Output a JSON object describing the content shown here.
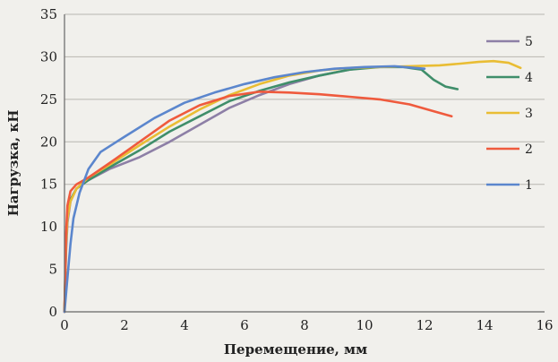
{
  "chart_data": {
    "type": "line",
    "xlabel": "Перемещение, мм",
    "ylabel": "Нагрузка, кН",
    "xlim": [
      0,
      16
    ],
    "ylim": [
      0,
      35
    ],
    "xticks": [
      "0",
      "2",
      "4",
      "6",
      "8",
      "10",
      "12",
      "14",
      "16"
    ],
    "yticks": [
      "0",
      "5",
      "10",
      "15",
      "20",
      "25",
      "30",
      "35"
    ],
    "grid": "horizontal",
    "legend_position": "right",
    "series": [
      {
        "name": "5",
        "color": "#8d7fa6",
        "points": [
          [
            0,
            0
          ],
          [
            0.05,
            7
          ],
          [
            0.1,
            10.5
          ],
          [
            0.2,
            13
          ],
          [
            0.4,
            14.5
          ],
          [
            0.8,
            15.5
          ],
          [
            1.5,
            16.8
          ],
          [
            2.5,
            18.2
          ],
          [
            3.5,
            20
          ],
          [
            4.5,
            22
          ],
          [
            5.5,
            24
          ],
          [
            6.5,
            25.5
          ],
          [
            7.5,
            26.8
          ],
          [
            8.5,
            27.8
          ],
          [
            9.5,
            28.5
          ],
          [
            10.2,
            28.8
          ]
        ]
      },
      {
        "name": "4",
        "color": "#3f8e6a",
        "points": [
          [
            0,
            0
          ],
          [
            0.05,
            8
          ],
          [
            0.1,
            11.5
          ],
          [
            0.2,
            13.2
          ],
          [
            0.4,
            14.5
          ],
          [
            0.8,
            15.5
          ],
          [
            1.5,
            17
          ],
          [
            2.5,
            19
          ],
          [
            3.5,
            21.2
          ],
          [
            4.5,
            23
          ],
          [
            5.5,
            24.8
          ],
          [
            6.5,
            26
          ],
          [
            7.5,
            27
          ],
          [
            8.5,
            27.8
          ],
          [
            9.5,
            28.5
          ],
          [
            10.5,
            28.8
          ],
          [
            11.3,
            28.8
          ],
          [
            11.9,
            28.5
          ],
          [
            12.3,
            27.3
          ],
          [
            12.7,
            26.5
          ],
          [
            13.1,
            26.2
          ]
        ]
      },
      {
        "name": "3",
        "color": "#e9bd34",
        "points": [
          [
            0,
            0
          ],
          [
            0.05,
            8
          ],
          [
            0.1,
            11
          ],
          [
            0.2,
            13
          ],
          [
            0.4,
            14.5
          ],
          [
            0.8,
            15.8
          ],
          [
            1.5,
            17.3
          ],
          [
            2.5,
            19.6
          ],
          [
            3.5,
            21.8
          ],
          [
            4.5,
            23.8
          ],
          [
            5.5,
            25.5
          ],
          [
            6.5,
            26.8
          ],
          [
            7.5,
            27.8
          ],
          [
            8.5,
            28.4
          ],
          [
            9.5,
            28.7
          ],
          [
            10.5,
            28.8
          ],
          [
            11.5,
            28.9
          ],
          [
            12.5,
            29
          ],
          [
            13.2,
            29.2
          ],
          [
            13.8,
            29.4
          ],
          [
            14.3,
            29.5
          ],
          [
            14.8,
            29.3
          ],
          [
            15.2,
            28.7
          ]
        ]
      },
      {
        "name": "2",
        "color": "#ef5a3d",
        "points": [
          [
            0,
            0
          ],
          [
            0.05,
            9
          ],
          [
            0.1,
            12.5
          ],
          [
            0.2,
            14.2
          ],
          [
            0.4,
            15
          ],
          [
            0.8,
            15.8
          ],
          [
            1.5,
            17.5
          ],
          [
            2.5,
            20
          ],
          [
            3.5,
            22.5
          ],
          [
            4.5,
            24.3
          ],
          [
            5.5,
            25.4
          ],
          [
            6.5,
            25.9
          ],
          [
            7.5,
            25.8
          ],
          [
            8.5,
            25.6
          ],
          [
            9.5,
            25.3
          ],
          [
            10.5,
            25
          ],
          [
            11.5,
            24.4
          ],
          [
            12.3,
            23.6
          ],
          [
            12.9,
            23
          ]
        ]
      },
      {
        "name": "1",
        "color": "#5b86cd",
        "points": [
          [
            0,
            0
          ],
          [
            0.1,
            4
          ],
          [
            0.2,
            8
          ],
          [
            0.3,
            11
          ],
          [
            0.5,
            14
          ],
          [
            0.8,
            16.8
          ],
          [
            1.2,
            18.8
          ],
          [
            2,
            20.6
          ],
          [
            3,
            22.8
          ],
          [
            4,
            24.6
          ],
          [
            5,
            25.8
          ],
          [
            6,
            26.8
          ],
          [
            7,
            27.6
          ],
          [
            8,
            28.2
          ],
          [
            9,
            28.6
          ],
          [
            10,
            28.8
          ],
          [
            11,
            28.9
          ],
          [
            12,
            28.6
          ]
        ]
      }
    ]
  }
}
